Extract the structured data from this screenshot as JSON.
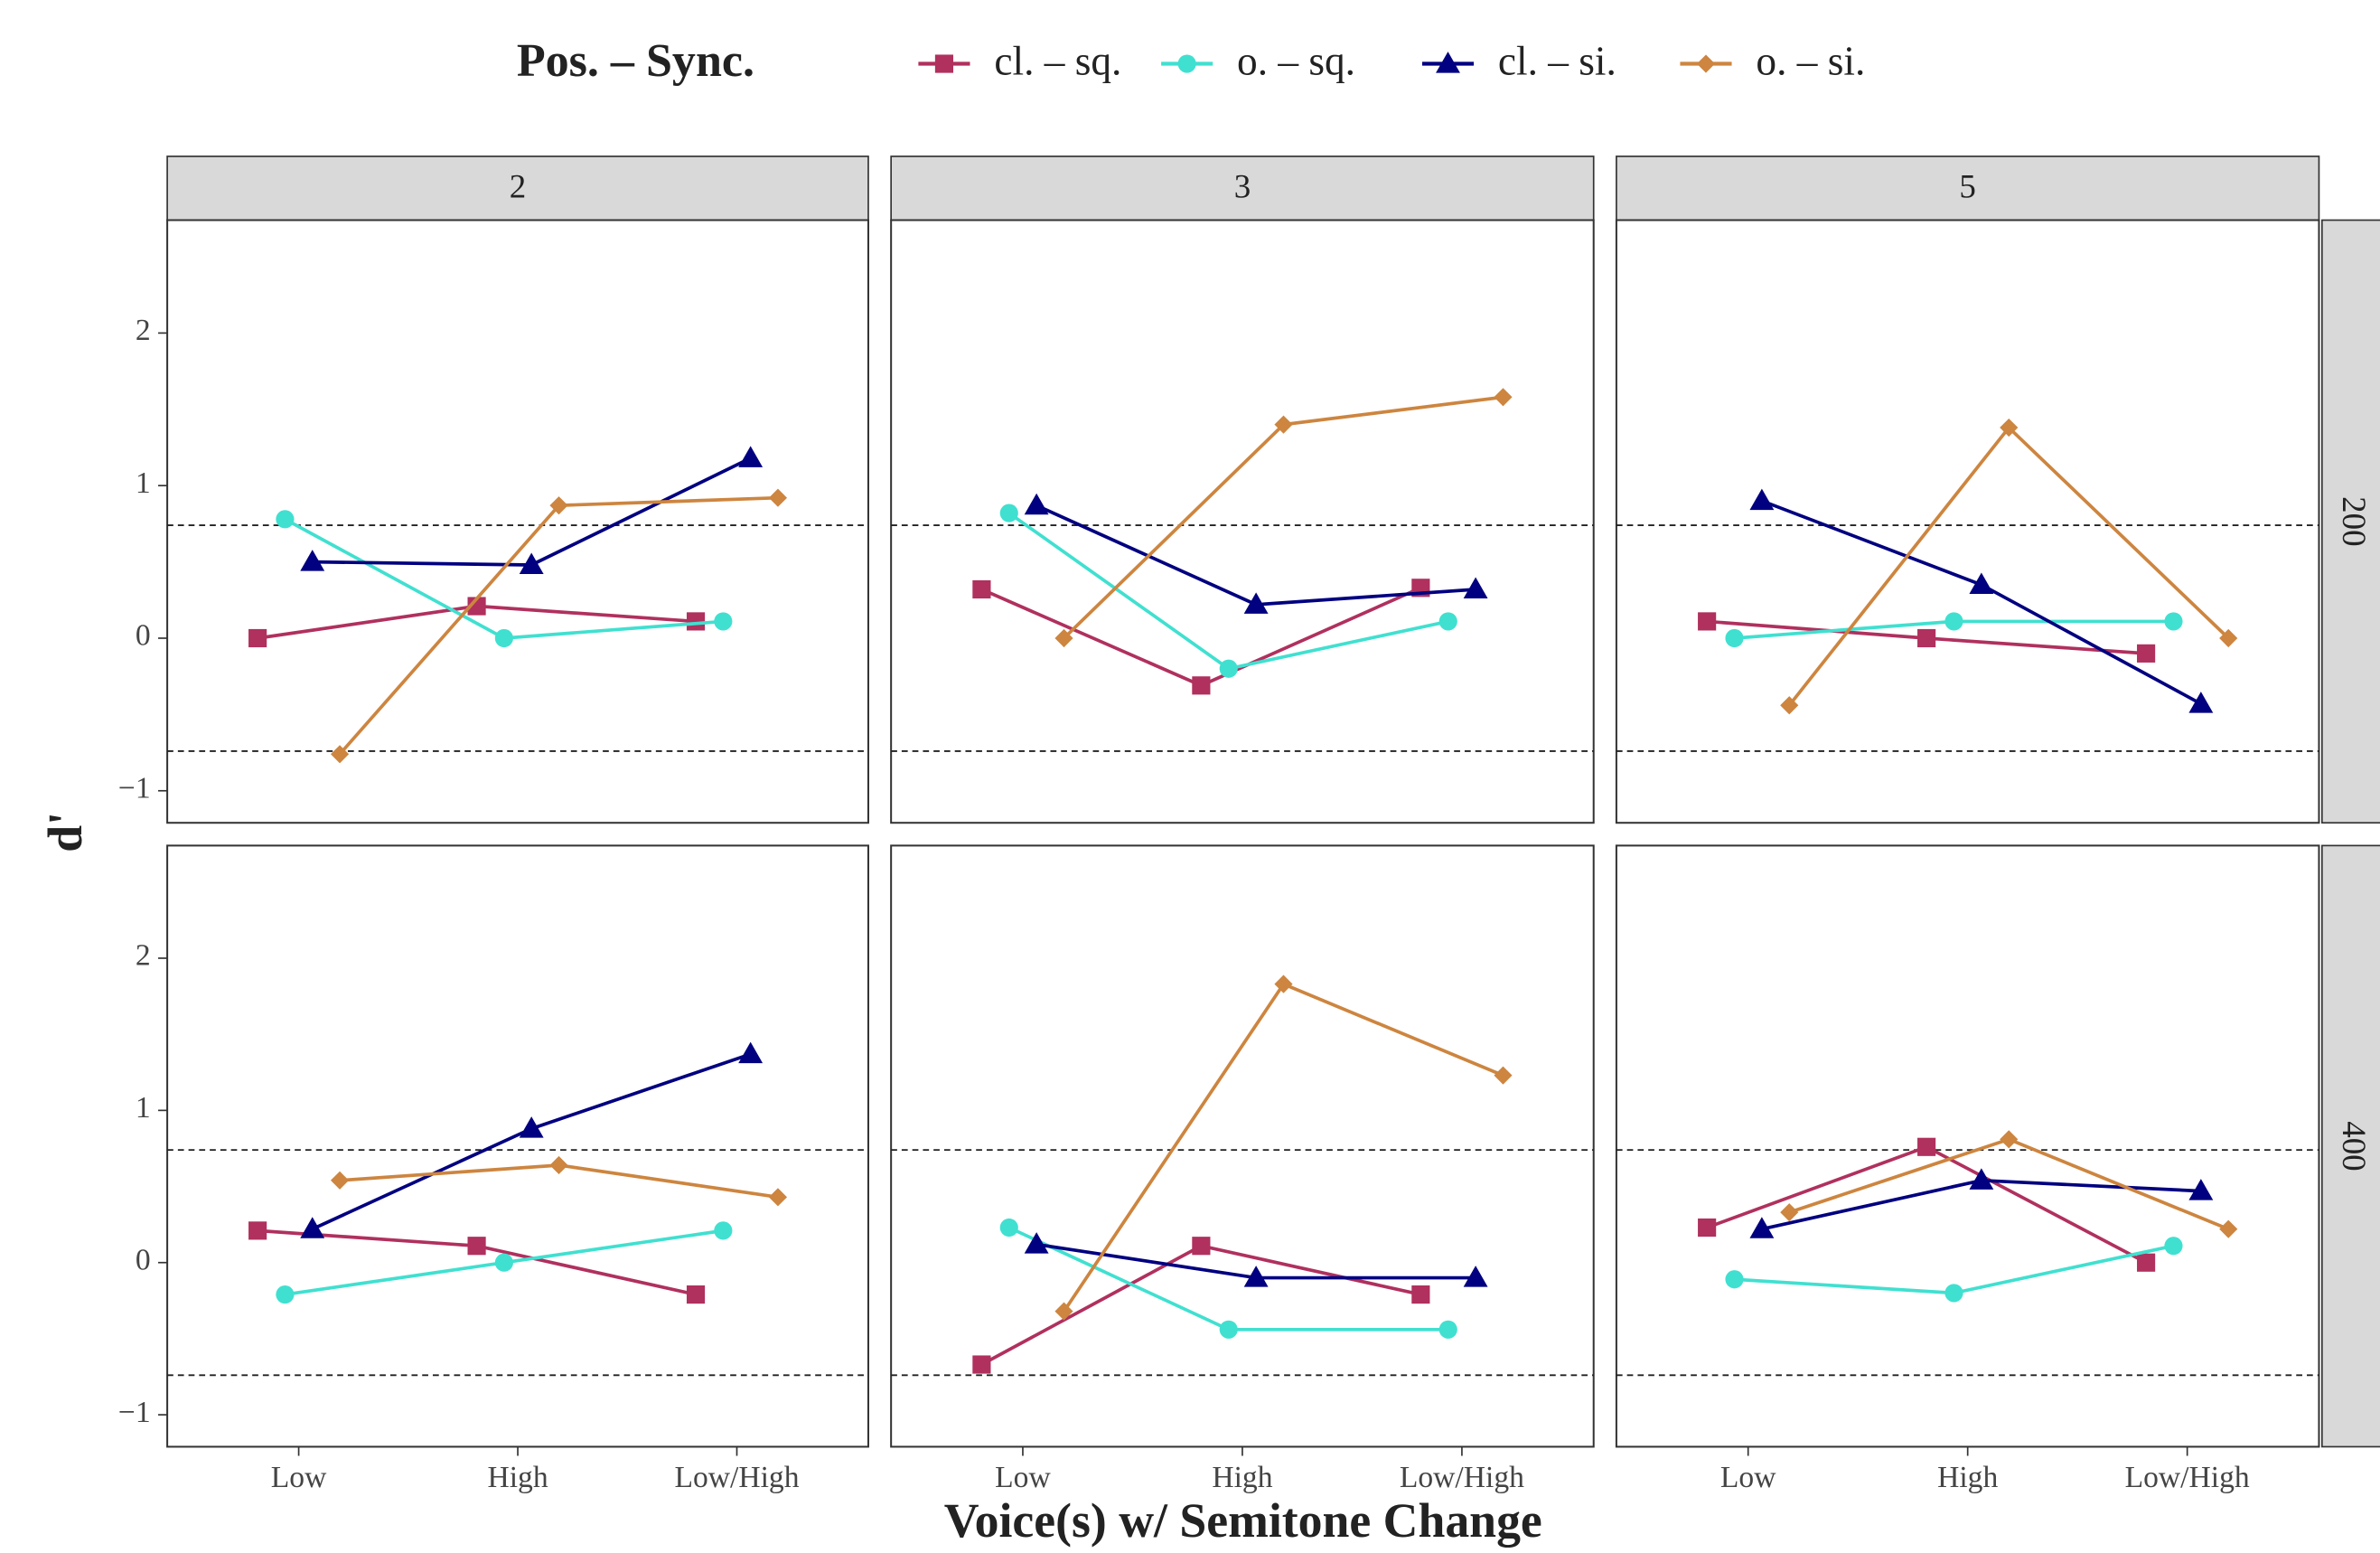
{
  "chart_data": {
    "type": "line",
    "legend_title": "Pos. – Sync.",
    "x_label": "Voice(s) w/ Semitone Change",
    "y_label": "d'",
    "categories": [
      "Low",
      "High",
      "Low/High"
    ],
    "ylim": [
      -1.21,
      2.74
    ],
    "yticks": [
      2,
      1,
      0,
      {
        "value": -1,
        "label": "−1"
      }
    ],
    "reference_lines": [
      0.74,
      -0.74
    ],
    "legend": [
      {
        "name": "cl. – sq.",
        "color": "#b0305e",
        "shape": "square"
      },
      {
        "name": "o. – sq.",
        "color": "#40e0d0",
        "shape": "circle"
      },
      {
        "name": "cl. – si.",
        "color": "#000080",
        "shape": "triangle"
      },
      {
        "name": "o. – si.",
        "color": "#cd853f",
        "shape": "diamond"
      }
    ],
    "column_labels": [
      "2",
      "3",
      "5"
    ],
    "row_labels": [
      "200",
      "400"
    ],
    "panels": [
      [
        [
          [
            0.0,
            0.21,
            0.11
          ],
          [
            0.78,
            0.0,
            0.11
          ],
          [
            0.5,
            0.48,
            1.18
          ],
          [
            -0.76,
            0.87,
            0.92
          ]
        ],
        [
          [
            0.32,
            -0.31,
            0.33
          ],
          [
            0.82,
            -0.2,
            0.11
          ],
          [
            0.87,
            0.22,
            0.32
          ],
          [
            0.0,
            1.4,
            1.58
          ]
        ],
        [
          [
            0.11,
            0.0,
            -0.1
          ],
          [
            0.0,
            0.11,
            0.11
          ],
          [
            0.9,
            0.35,
            -0.43
          ],
          [
            -0.44,
            1.38,
            0.0
          ]
        ]
      ],
      [
        [
          [
            0.21,
            0.11,
            -0.21
          ],
          [
            -0.21,
            0.0,
            0.21
          ],
          [
            0.22,
            0.88,
            1.37
          ],
          [
            0.54,
            0.64,
            0.43
          ]
        ],
        [
          [
            -0.67,
            0.11,
            -0.21
          ],
          [
            0.23,
            -0.44,
            -0.44
          ],
          [
            0.12,
            -0.1,
            -0.1
          ],
          [
            -0.32,
            1.83,
            1.23
          ]
        ],
        [
          [
            0.23,
            0.76,
            0.0
          ],
          [
            -0.11,
            -0.2,
            0.11
          ],
          [
            0.22,
            0.54,
            0.47
          ],
          [
            0.33,
            0.81,
            0.22
          ]
        ]
      ]
    ]
  }
}
